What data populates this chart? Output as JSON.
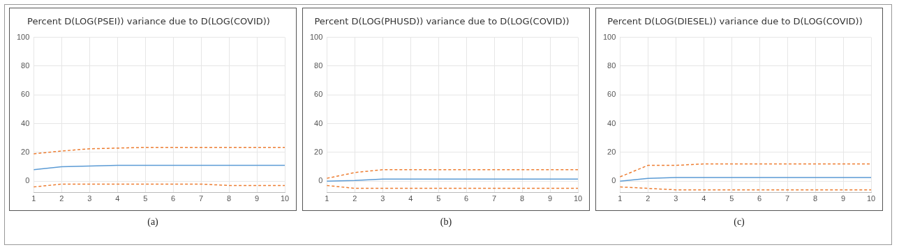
{
  "chart_data": [
    {
      "type": "line",
      "title": "Percent D(LOG(PSEI)) variance due to D(LOG(COVID))",
      "categories": [
        "1",
        "2",
        "3",
        "4",
        "5",
        "6",
        "7",
        "8",
        "9",
        "10"
      ],
      "ylim": [
        -8,
        100
      ],
      "yticks": [
        0,
        20,
        40,
        60,
        80,
        100
      ],
      "grid": true,
      "marker": "none",
      "annotations": [
        "(a)"
      ],
      "series": [
        {
          "color": "#5b9bd5",
          "line_style": "solid",
          "values": [
            8,
            10,
            10.5,
            11,
            11,
            11,
            11,
            11,
            11,
            11
          ]
        },
        {
          "color": "#ed7d31",
          "line_style": "dashed",
          "values": [
            19,
            21,
            22.5,
            23,
            23.5,
            23.5,
            23.5,
            23.5,
            23.5,
            23.5
          ]
        },
        {
          "color": "#ed7d31",
          "line_style": "dashed",
          "values": [
            -4,
            -2,
            -2,
            -2,
            -2,
            -2,
            -2,
            -3,
            -3,
            -3
          ]
        }
      ]
    },
    {
      "type": "line",
      "title": "Percent D(LOG(PHUSD)) variance due to D(LOG(COVID))",
      "categories": [
        "1",
        "2",
        "3",
        "4",
        "5",
        "6",
        "7",
        "8",
        "9",
        "10"
      ],
      "ylim": [
        -8,
        100
      ],
      "yticks": [
        0,
        20,
        40,
        60,
        80,
        100
      ],
      "grid": true,
      "marker": "none",
      "annotations": [
        "(b)"
      ],
      "series": [
        {
          "color": "#5b9bd5",
          "line_style": "solid",
          "values": [
            0,
            0.5,
            1.5,
            1.5,
            1.5,
            1.5,
            1.5,
            1.5,
            1.5,
            1.5
          ]
        },
        {
          "color": "#ed7d31",
          "line_style": "dashed",
          "values": [
            2,
            6,
            8,
            8,
            8,
            8,
            8,
            8,
            8,
            8
          ]
        },
        {
          "color": "#ed7d31",
          "line_style": "dashed",
          "values": [
            -3,
            -5,
            -5,
            -5,
            -5,
            -5,
            -5,
            -5,
            -5,
            -5
          ]
        }
      ]
    },
    {
      "type": "line",
      "title": "Percent D(LOG(DIESEL)) variance due to D(LOG(COVID))",
      "categories": [
        "1",
        "2",
        "3",
        "4",
        "5",
        "6",
        "7",
        "8",
        "9",
        "10"
      ],
      "ylim": [
        -8,
        100
      ],
      "yticks": [
        0,
        20,
        40,
        60,
        80,
        100
      ],
      "grid": true,
      "marker": "none",
      "annotations": [
        "(c)"
      ],
      "series": [
        {
          "color": "#5b9bd5",
          "line_style": "solid",
          "values": [
            0,
            2,
            2.5,
            2.5,
            2.5,
            2.5,
            2.5,
            2.5,
            2.5,
            2.5
          ]
        },
        {
          "color": "#ed7d31",
          "line_style": "dashed",
          "values": [
            3,
            11,
            11,
            12,
            12,
            12,
            12,
            12,
            12,
            12
          ]
        },
        {
          "color": "#ed7d31",
          "line_style": "dashed",
          "values": [
            -4,
            -5,
            -6,
            -6,
            -6,
            -6,
            -6,
            -6,
            -6,
            -6
          ]
        }
      ]
    }
  ]
}
